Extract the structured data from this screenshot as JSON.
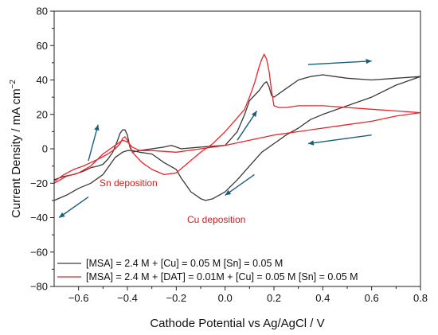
{
  "chart_data": {
    "type": "line",
    "xlabel": "Cathode Potential vs Ag/AgCl / V",
    "ylabel_main": "Current Density / mA cm",
    "ylabel_sup": "−2",
    "xlim": [
      -0.7,
      0.8
    ],
    "ylim": [
      -80,
      80
    ],
    "xticks": [
      -0.6,
      -0.4,
      -0.2,
      0.0,
      0.2,
      0.4,
      0.6,
      0.8
    ],
    "xtick_labels": [
      "−0.6",
      "−0.4",
      "−0.2",
      "0.0",
      "0.2",
      "0.4",
      "0.6",
      "0.8"
    ],
    "yticks": [
      -80,
      -60,
      -40,
      -20,
      0,
      20,
      40,
      60,
      80
    ],
    "ytick_labels": [
      "−80",
      "−60",
      "−40",
      "−20",
      "0",
      "20",
      "40",
      "60",
      "80"
    ],
    "grid": false,
    "legend_position": "bottom-left",
    "series": [
      {
        "name": "[MSA] = 2.4 M + [Cu] = 0.05 M [Sn] = 0.05 M",
        "color": "#3a3a3a",
        "x": [
          -0.7,
          -0.66,
          -0.62,
          -0.58,
          -0.55,
          -0.52,
          -0.5,
          -0.48,
          -0.46,
          -0.44,
          -0.43,
          -0.42,
          -0.41,
          -0.4,
          -0.39,
          -0.38,
          -0.35,
          -0.3,
          -0.25,
          -0.22,
          -0.2,
          -0.18,
          -0.1,
          0.0,
          0.05,
          0.08,
          0.1,
          0.12,
          0.14,
          0.16,
          0.17,
          0.18,
          0.19,
          0.2,
          0.25,
          0.3,
          0.35,
          0.4,
          0.45,
          0.5,
          0.6,
          0.7,
          0.8,
          0.7,
          0.6,
          0.5,
          0.4,
          0.35,
          0.3,
          0.25,
          0.2,
          0.15,
          0.1,
          0.05,
          0.0,
          -0.05,
          -0.08,
          -0.1,
          -0.12,
          -0.14,
          -0.16,
          -0.18,
          -0.2,
          -0.25,
          -0.3,
          -0.35,
          -0.38,
          -0.4,
          -0.42,
          -0.45,
          -0.5,
          -0.55,
          -0.6,
          -0.65,
          -0.7
        ],
        "y": [
          -18,
          -16,
          -15,
          -13,
          -11,
          -10,
          -9,
          -6,
          -2,
          5,
          9,
          11,
          11,
          8,
          1,
          -2,
          -1,
          0,
          1,
          2,
          1,
          0,
          1,
          2,
          10,
          20,
          28,
          31,
          34,
          38,
          39,
          36,
          31,
          30,
          35,
          40,
          42,
          43,
          42,
          41,
          40,
          41,
          42,
          37,
          30,
          25,
          20,
          17,
          12,
          8,
          3,
          -2,
          -10,
          -18,
          -25,
          -29,
          -30,
          -29,
          -27,
          -25,
          -21,
          -17,
          -12,
          -8,
          -3,
          -2,
          -1,
          -1,
          -2,
          -5,
          -15,
          -20,
          -23,
          -27,
          -30
        ]
      },
      {
        "name": "[MSA] = 2.4 M + [DAT] = 0.01M + [Cu] = 0.05 M [Sn] = 0.05 M",
        "color": "#e8262a",
        "x": [
          -0.7,
          -0.66,
          -0.62,
          -0.58,
          -0.55,
          -0.52,
          -0.48,
          -0.45,
          -0.43,
          -0.42,
          -0.41,
          -0.4,
          -0.39,
          -0.38,
          -0.36,
          -0.34,
          -0.3,
          -0.25,
          -0.2,
          -0.15,
          -0.1,
          -0.05,
          0.0,
          0.05,
          0.08,
          0.1,
          0.12,
          0.14,
          0.15,
          0.16,
          0.17,
          0.18,
          0.19,
          0.2,
          0.22,
          0.25,
          0.3,
          0.35,
          0.4,
          0.5,
          0.6,
          0.7,
          0.8,
          0.7,
          0.6,
          0.5,
          0.4,
          0.3,
          0.2,
          0.1,
          0.0,
          -0.1,
          -0.2,
          -0.3,
          -0.35,
          -0.38,
          -0.4,
          -0.42,
          -0.45,
          -0.5,
          -0.55,
          -0.6,
          -0.65,
          -0.7
        ],
        "y": [
          -19,
          -15,
          -12,
          -10,
          -8,
          -6,
          -3,
          0,
          3,
          6,
          7,
          5,
          2,
          -2,
          -5,
          -8,
          -12,
          -15,
          -14,
          -8,
          -2,
          3,
          10,
          18,
          23,
          30,
          38,
          48,
          52,
          55,
          52,
          45,
          34,
          25,
          24,
          24,
          25,
          25,
          25,
          24,
          23,
          22,
          21,
          19,
          16,
          14,
          12,
          10,
          8,
          5,
          2,
          0,
          -2,
          -1,
          -1,
          1,
          4,
          5,
          2,
          -3,
          -10,
          -14,
          -16,
          -20
        ]
      }
    ],
    "annotations": [
      {
        "text": "Sn deposition",
        "color": "#cc1f1f"
      },
      {
        "text": "Cu deposition",
        "color": "#cc1f1f"
      }
    ],
    "arrow_color": "#1a5f7a"
  }
}
